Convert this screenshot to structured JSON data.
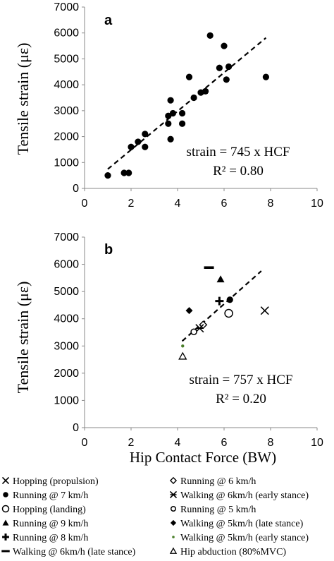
{
  "chart_data": [
    {
      "type": "scatter",
      "panel_label": "a",
      "ylabel": "Tensile strain (με)",
      "xlabel": "",
      "xlim": [
        0,
        10
      ],
      "ylim": [
        0,
        7000
      ],
      "x_ticks": [
        "0",
        "2",
        "4",
        "6",
        "8",
        "10"
      ],
      "y_ticks": [
        "0",
        "1000",
        "2000",
        "3000",
        "4000",
        "5000",
        "6000",
        "7000"
      ],
      "annotation_line1": "strain = 745 x HCF",
      "annotation_line2": "R² = 0.80",
      "trendline": {
        "x": [
          1.0,
          7.8
        ],
        "y": [
          745,
          5811
        ]
      },
      "series": [
        {
          "marker": "filled-circle",
          "x": [
            1.0,
            1.7,
            1.9,
            2.0,
            2.3,
            2.6,
            2.6,
            3.6,
            3.6,
            3.7,
            3.7,
            3.8,
            4.2,
            4.2,
            4.5,
            4.7,
            5.0,
            5.2,
            5.4,
            5.8,
            6.0,
            6.1,
            6.2,
            7.8
          ],
          "y": [
            500,
            600,
            600,
            1600,
            1800,
            2100,
            1600,
            2500,
            2800,
            3400,
            1900,
            2900,
            2500,
            2900,
            4300,
            3500,
            3700,
            3750,
            5900,
            4650,
            5500,
            4200,
            4700,
            4300
          ]
        }
      ]
    },
    {
      "type": "scatter",
      "panel_label": "b",
      "ylabel": "Tensile strain (με)",
      "xlabel": "Hip Contact Force (BW)",
      "xlim": [
        0,
        10
      ],
      "ylim": [
        0,
        7000
      ],
      "x_ticks": [
        "0",
        "2",
        "4",
        "6",
        "8",
        "10"
      ],
      "y_ticks": [
        "0",
        "1000",
        "2000",
        "3000",
        "4000",
        "5000",
        "6000",
        "7000"
      ],
      "annotation_line1": "strain = 757 x HCF",
      "annotation_line2": "R² = 0.20",
      "trendline": {
        "x": [
          4.2,
          7.6
        ],
        "y": [
          3179,
          5753
        ]
      },
      "series": [
        {
          "name": "Hopping (propulsion)",
          "marker": "x",
          "x": [
            7.75
          ],
          "y": [
            4300
          ]
        },
        {
          "name": "Running @ 7 km/h",
          "marker": "filled-circle",
          "x": [
            6.25
          ],
          "y": [
            4700
          ]
        },
        {
          "name": "Hopping (landing)",
          "marker": "open-circle",
          "x": [
            6.2
          ],
          "y": [
            4200
          ]
        },
        {
          "name": "Running @ 9 km/h",
          "marker": "filled-triangle",
          "x": [
            5.85
          ],
          "y": [
            5450
          ]
        },
        {
          "name": "Running @ 8 km/h",
          "marker": "plus",
          "x": [
            5.8
          ],
          "y": [
            4650
          ]
        },
        {
          "name": "Walking @ 6km/h (late stance)",
          "marker": "dash",
          "x": [
            5.35
          ],
          "y": [
            5880
          ]
        },
        {
          "name": "Running @ 6 km/h",
          "marker": "open-diamond",
          "x": [
            5.1
          ],
          "y": [
            3780
          ]
        },
        {
          "name": "Walking @ 6km/h (early stance)",
          "marker": "asterisk",
          "x": [
            4.95
          ],
          "y": [
            3650
          ]
        },
        {
          "name": "Running @ 5 km/h",
          "marker": "open-circle-small",
          "x": [
            4.7
          ],
          "y": [
            3520
          ]
        },
        {
          "name": "Walking @ 5km/h (late stance)",
          "marker": "filled-diamond",
          "x": [
            4.5
          ],
          "y": [
            4300
          ]
        },
        {
          "name": "Walking @ 5km/h (early stance)",
          "marker": "small-dot-green",
          "x": [
            4.22
          ],
          "y": [
            3000
          ]
        },
        {
          "name": "Hip abduction (80%MVC)",
          "marker": "open-triangle",
          "x": [
            4.22
          ],
          "y": [
            2620
          ]
        }
      ]
    }
  ],
  "legend": {
    "left": [
      {
        "symbol": "x",
        "label": "Hopping (propulsion)"
      },
      {
        "symbol": "filled-circle",
        "label": "Running  @ 7 km/h"
      },
      {
        "symbol": "open-circle",
        "label": "Hopping (landing)"
      },
      {
        "symbol": "filled-triangle",
        "label": "Running @ 9 km/h"
      },
      {
        "symbol": "plus",
        "label": "Running @ 8 km/h"
      },
      {
        "symbol": "dash",
        "label": "Walking @ 6km/h (late stance)"
      }
    ],
    "right": [
      {
        "symbol": "open-diamond",
        "label": "Running @ 6 km/h"
      },
      {
        "symbol": "asterisk",
        "label": "Walking @ 6km/h (early stance)"
      },
      {
        "symbol": "open-circle-small",
        "label": "Running @ 5 km/h"
      },
      {
        "symbol": "filled-diamond",
        "label": "Walking @ 5km/h (late stance)"
      },
      {
        "symbol": "small-dot-green",
        "label": "Walking @ 5km/h (early stance)"
      },
      {
        "symbol": "open-triangle",
        "label": "Hip abduction (80%MVC)"
      }
    ]
  },
  "colors": {
    "ink": "#000000",
    "green_dot": "#4a7f2a"
  }
}
